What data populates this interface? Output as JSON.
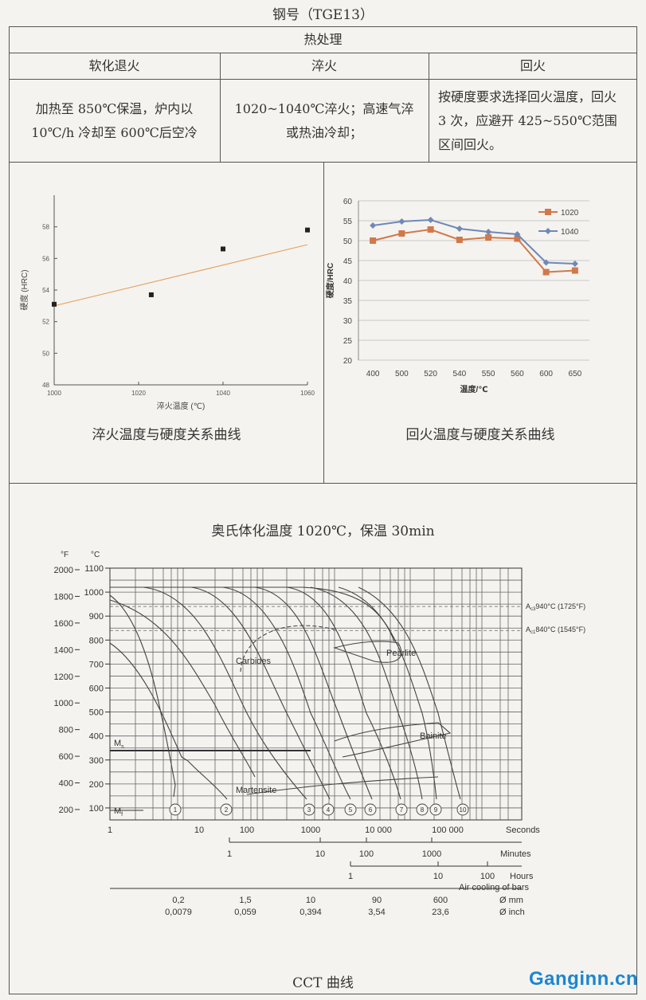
{
  "title": "钢号（TGE13）",
  "table": {
    "header": "热处理",
    "columns": [
      "软化退火",
      "淬火",
      "回火"
    ],
    "cells": [
      "加热至 850℃保温，炉内以 10℃/h 冷却至 600℃后空冷",
      "1020~1040℃淬火；高速气淬或热油冷却；",
      "按硬度要求选择回火温度，回火 3 次，应避开 425~550℃范围区间回火。"
    ]
  },
  "chart_data": [
    {
      "type": "scatter",
      "title": "淬火温度与硬度关系曲线",
      "xlabel": "淬火温度 (℃)",
      "ylabel": "硬度 (HRC)",
      "xlim": [
        1000,
        1060
      ],
      "ylim": [
        48,
        60
      ],
      "xticks": [
        "1000",
        "1020",
        "1040",
        "1060"
      ],
      "yticks": [
        "48",
        "50",
        "52",
        "54",
        "56",
        "58"
      ],
      "points": [
        {
          "x": 1000,
          "y": 53.1
        },
        {
          "x": 1023,
          "y": 53.7
        },
        {
          "x": 1040,
          "y": 56.6
        },
        {
          "x": 1060,
          "y": 57.8
        }
      ],
      "trendline": [
        {
          "x": 1000,
          "y": 53.0
        },
        {
          "x": 1062,
          "y": 57.0
        }
      ],
      "colors": {
        "points": "#222222",
        "trendline": "#e39b55"
      }
    },
    {
      "type": "line",
      "title": "回火温度与硬度关系曲线",
      "xlabel": "温度/℃",
      "ylabel": "硬度/HRC",
      "categories": [
        "400",
        "500",
        "520",
        "540",
        "550",
        "560",
        "600",
        "650"
      ],
      "ylim": [
        20,
        60
      ],
      "yticks": [
        "20",
        "25",
        "30",
        "35",
        "40",
        "45",
        "50",
        "55",
        "60"
      ],
      "grid": true,
      "legend": "top-right",
      "series": [
        {
          "name": "1020",
          "values": [
            50.0,
            51.8,
            52.8,
            50.2,
            50.8,
            50.5,
            42.1,
            42.5
          ],
          "color": "#d2784a"
        },
        {
          "name": "1040",
          "values": [
            53.8,
            54.8,
            55.2,
            53.0,
            52.2,
            51.6,
            44.5,
            44.2
          ],
          "color": "#6f88b8"
        }
      ]
    }
  ],
  "cct": {
    "heading": "奥氏体化温度 1020℃，保温 30min",
    "caption": "CCT 曲线",
    "unit_f": "°F",
    "unit_c": "°C",
    "f_ticks": [
      "2000",
      "1800",
      "1600",
      "1400",
      "1200",
      "1000",
      "800",
      "600",
      "400",
      "200"
    ],
    "c_ticks": [
      "1100",
      "1000",
      "900",
      "800",
      "700",
      "600",
      "500",
      "400",
      "300",
      "200",
      "100"
    ],
    "ac3": "A",
    "ac3_sub": "c3",
    "ac3_text": "940°C (1725°F)",
    "ac1": "A",
    "ac1_sub": "c1",
    "ac1_text": "840°C (1545°F)",
    "ms": "M",
    "ms_sub": "s",
    "mf": "M",
    "mf_sub": "f",
    "labels": {
      "carbides": "Carbides",
      "pearlite": "Pearlite",
      "bainite": "Bainite",
      "martensite": "Martensite"
    },
    "curve_numbers": [
      "1",
      "2",
      "3",
      "4",
      "5",
      "6",
      "7",
      "8",
      "9",
      "10"
    ],
    "seconds": {
      "ticks": [
        "1",
        "10",
        "100",
        "1000",
        "10 000",
        "100 000"
      ],
      "label": "Seconds"
    },
    "minutes": {
      "ticks": [
        "1",
        "10",
        "100",
        "1000"
      ],
      "label": "Minutes"
    },
    "hours": {
      "ticks": [
        "1",
        "10",
        "100"
      ],
      "label": "Hours"
    },
    "air_cooling": "Air cooling of bars",
    "mm": {
      "values": [
        "0,2",
        "1,5",
        "10",
        "90",
        "600"
      ],
      "label": "Ø mm"
    },
    "inch": {
      "values": [
        "0,0079",
        "0,059",
        "0,394",
        "3,54",
        "23,6"
      ],
      "label": "Ø inch"
    }
  },
  "watermark": "Ganginn.cn"
}
